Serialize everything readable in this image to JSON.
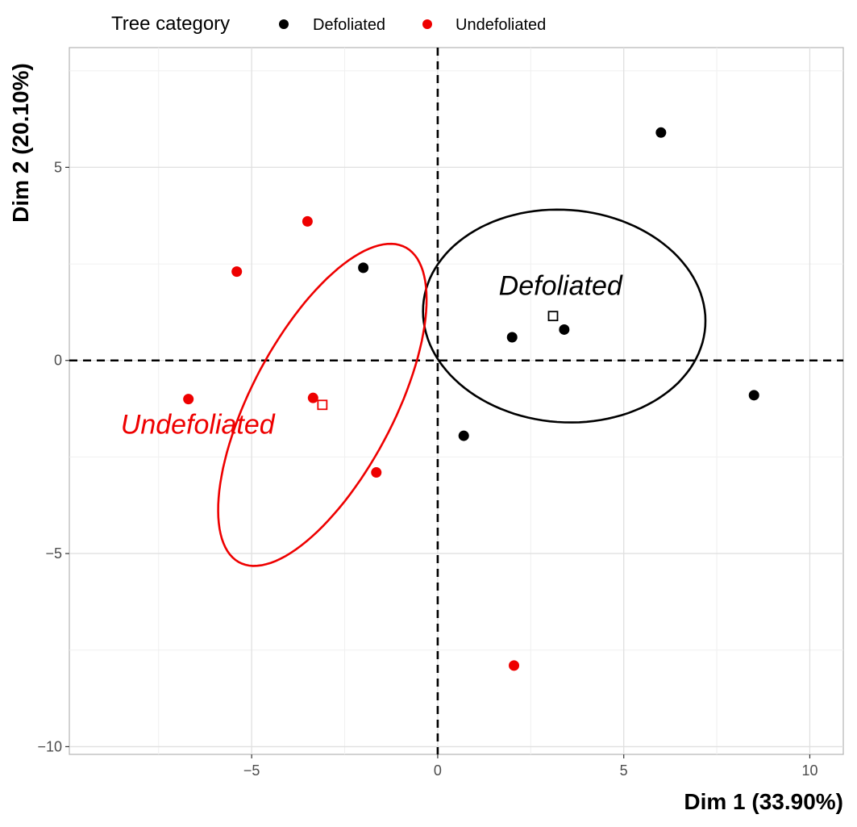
{
  "chart_data": {
    "type": "scatter",
    "title": "",
    "xlabel": "Dim 1 (33.90%)",
    "ylabel": "Dim 2 (20.10%)",
    "xlim": [
      -9.9,
      10.9
    ],
    "ylim": [
      -10.2,
      8.1
    ],
    "x_ticks": [
      -5,
      0,
      5,
      10
    ],
    "x_tick_labels": [
      "−5",
      "0",
      "5",
      "10"
    ],
    "y_ticks": [
      -10,
      -5,
      0,
      5
    ],
    "y_tick_labels": [
      "−10",
      "−5",
      "0",
      "5"
    ],
    "grid": true,
    "legend": {
      "title": "Tree category",
      "position": "top-left",
      "entries": [
        {
          "label": "Defoliated",
          "color": "#000000"
        },
        {
          "label": "Undefoliated",
          "color": "#ee0000"
        }
      ]
    },
    "series": [
      {
        "name": "Defoliated",
        "color": "#000000",
        "points": [
          {
            "x": 6.0,
            "y": 5.9
          },
          {
            "x": -2.0,
            "y": 2.4
          },
          {
            "x": 2.0,
            "y": 0.6
          },
          {
            "x": 3.4,
            "y": 0.8
          },
          {
            "x": 8.5,
            "y": -0.9
          },
          {
            "x": 0.7,
            "y": -1.95
          }
        ],
        "centroid": {
          "x": 3.1,
          "y": 1.15
        },
        "ellipse": {
          "cx": 3.4,
          "cy": 1.15,
          "rx": 3.8,
          "ry": 2.75,
          "angle_deg": -4
        },
        "ellipse_label": "Defoliated"
      },
      {
        "name": "Undefoliated",
        "color": "#ee0000",
        "points": [
          {
            "x": -3.5,
            "y": 3.6
          },
          {
            "x": -5.4,
            "y": 2.3
          },
          {
            "x": -6.7,
            "y": -1.0
          },
          {
            "x": -3.35,
            "y": -0.97
          },
          {
            "x": -1.65,
            "y": -2.9
          },
          {
            "x": 2.05,
            "y": -7.9
          }
        ],
        "centroid": {
          "x": -3.1,
          "y": -1.15
        },
        "ellipse": {
          "cx": -3.1,
          "cy": -1.15,
          "rx": 1.9,
          "ry": 4.65,
          "angle_deg": -29
        },
        "ellipse_label": "Undefoliated"
      }
    ],
    "reference_lines": {
      "x": 0,
      "y": 0,
      "style": "dashed"
    }
  }
}
